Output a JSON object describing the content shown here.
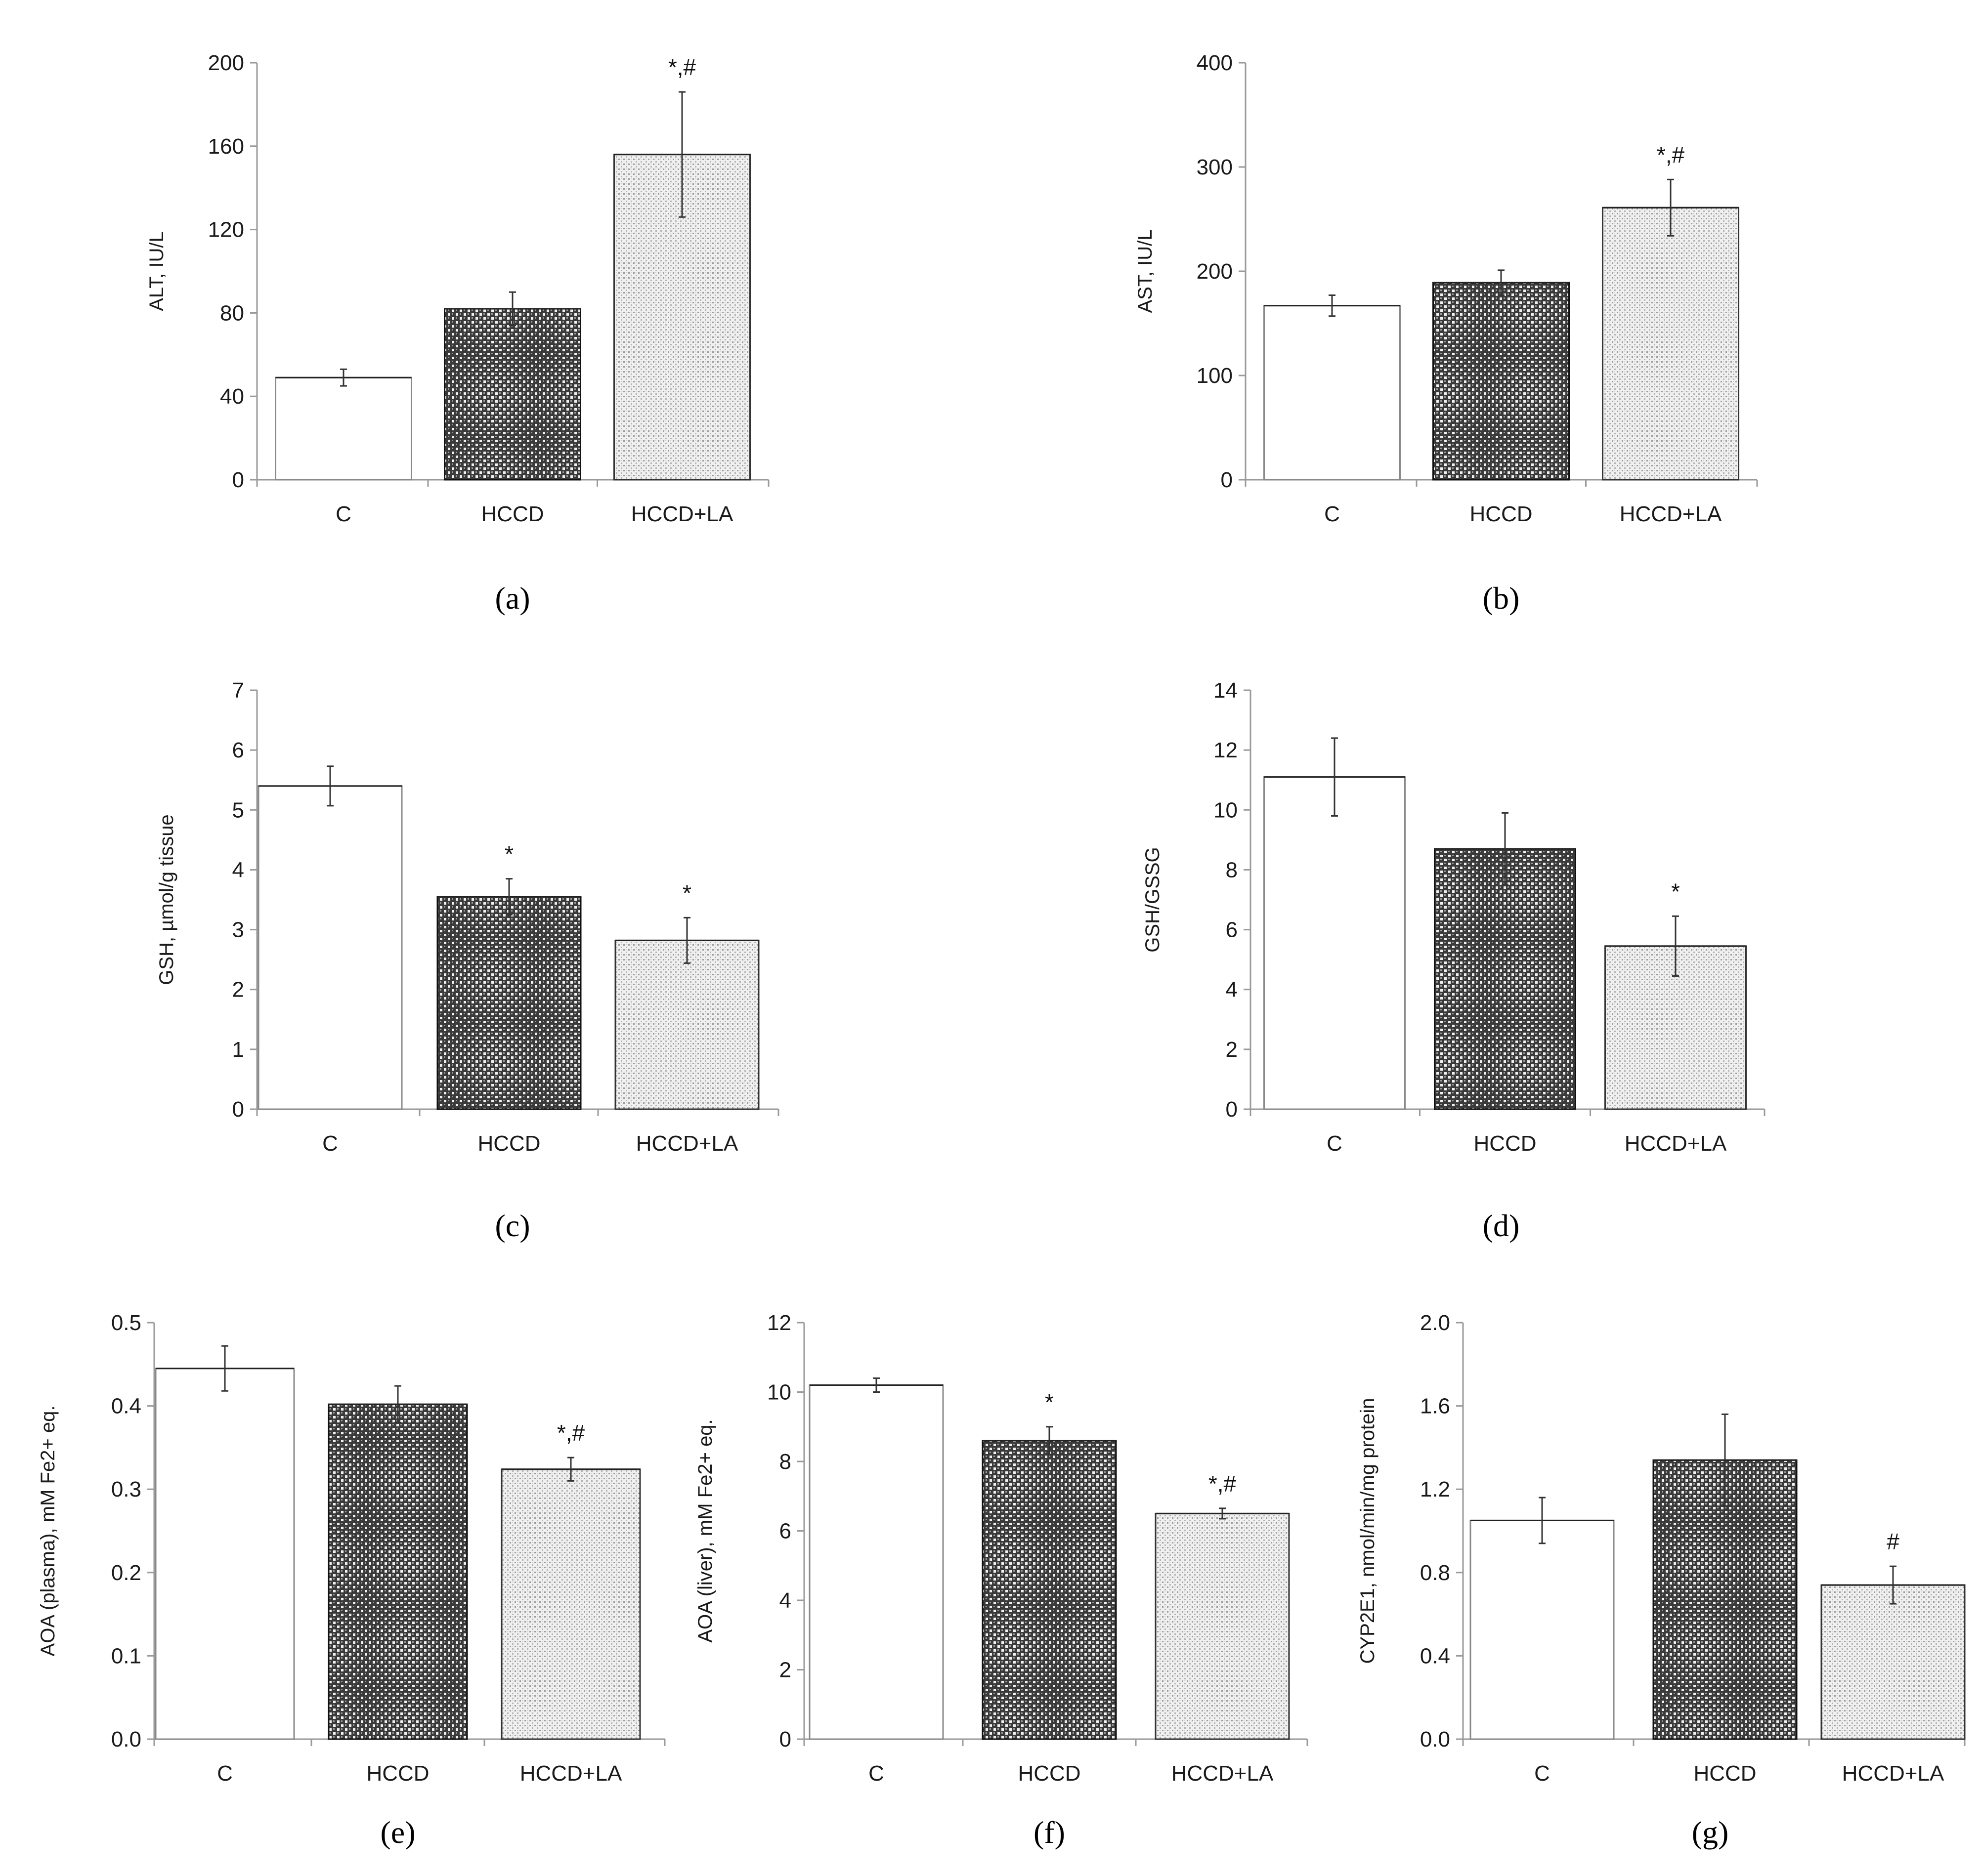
{
  "patterns": {
    "C": {
      "fill": "#ffffff",
      "stroke": "#888888"
    },
    "HCCD": {
      "fill": "dark-check",
      "stroke": "#111111"
    },
    "HCCD+LA": {
      "fill": "light-dot",
      "stroke": "#333333"
    }
  },
  "chart_data": [
    {
      "id": "a",
      "type": "bar",
      "panel_label": "(a)",
      "categories": [
        "C",
        "HCCD",
        "HCCD+LA"
      ],
      "values": [
        49,
        82,
        156
      ],
      "errors": [
        4,
        8,
        30
      ],
      "annotations": [
        "",
        "",
        "*,#"
      ],
      "ylabel": "ALT, IU/L",
      "ylim": [
        0,
        200
      ],
      "yticks": [
        "0",
        "40",
        "80",
        "120",
        "160",
        "200"
      ]
    },
    {
      "id": "b",
      "type": "bar",
      "panel_label": "(b)",
      "categories": [
        "C",
        "HCCD",
        "HCCD+LA"
      ],
      "values": [
        167,
        189,
        261
      ],
      "errors": [
        10,
        12,
        27
      ],
      "annotations": [
        "",
        "",
        "*,#"
      ],
      "ylabel": "AST, IU/L",
      "ylim": [
        0,
        400
      ],
      "yticks": [
        "0",
        "100",
        "200",
        "300",
        "400"
      ]
    },
    {
      "id": "c",
      "type": "bar",
      "panel_label": "(c)",
      "categories": [
        "C",
        "HCCD",
        "HCCD+LA"
      ],
      "values": [
        5.4,
        3.55,
        2.82
      ],
      "errors": [
        0.33,
        0.3,
        0.38
      ],
      "annotations": [
        "",
        "*",
        "*"
      ],
      "ylabel": "GSH, µmol/g tissue",
      "ylim": [
        0,
        7
      ],
      "yticks": [
        "0",
        "1",
        "2",
        "3",
        "4",
        "5",
        "6",
        "7"
      ]
    },
    {
      "id": "d",
      "type": "bar",
      "panel_label": "(d)",
      "categories": [
        "C",
        "HCCD",
        "HCCD+LA"
      ],
      "values": [
        11.1,
        8.7,
        5.45
      ],
      "errors": [
        1.3,
        1.2,
        1.0
      ],
      "annotations": [
        "",
        "",
        "*"
      ],
      "ylabel": "GSH/GSSG",
      "ylim": [
        0,
        14
      ],
      "yticks": [
        "0",
        "2",
        "4",
        "6",
        "8",
        "10",
        "12",
        "14"
      ]
    },
    {
      "id": "e",
      "type": "bar",
      "panel_label": "(e)",
      "categories": [
        "C",
        "HCCD",
        "HCCD+LA"
      ],
      "values": [
        0.445,
        0.402,
        0.324
      ],
      "errors": [
        0.027,
        0.022,
        0.014
      ],
      "annotations": [
        "",
        "",
        "*,#"
      ],
      "ylabel": "AOA (plasma), mM Fe2+ eq.",
      "ylim": [
        0,
        0.5
      ],
      "yticks": [
        "0.0",
        "0.1",
        "0.2",
        "0.3",
        "0.4",
        "0.5"
      ]
    },
    {
      "id": "f",
      "type": "bar",
      "panel_label": "(f)",
      "categories": [
        "C",
        "HCCD",
        "HCCD+LA"
      ],
      "values": [
        10.2,
        8.6,
        6.5
      ],
      "errors": [
        0.2,
        0.4,
        0.15
      ],
      "annotations": [
        "",
        "*",
        "*,#"
      ],
      "ylabel": "AOA (liver), mM Fe2+ eq.",
      "ylim": [
        0,
        12
      ],
      "yticks": [
        "0",
        "2",
        "4",
        "6",
        "8",
        "10",
        "12"
      ]
    },
    {
      "id": "g",
      "type": "bar",
      "panel_label": "(g)",
      "categories": [
        "C",
        "HCCD",
        "HCCD+LA"
      ],
      "values": [
        1.05,
        1.34,
        0.74
      ],
      "errors": [
        0.11,
        0.22,
        0.09
      ],
      "annotations": [
        "",
        "",
        "#"
      ],
      "ylabel": "CYP2E1, nmol/min/mg protein",
      "ylim": [
        0,
        2.0
      ],
      "yticks": [
        "0.0",
        "0.4",
        "0.8",
        "1.2",
        "1.6",
        "2.0"
      ]
    }
  ]
}
